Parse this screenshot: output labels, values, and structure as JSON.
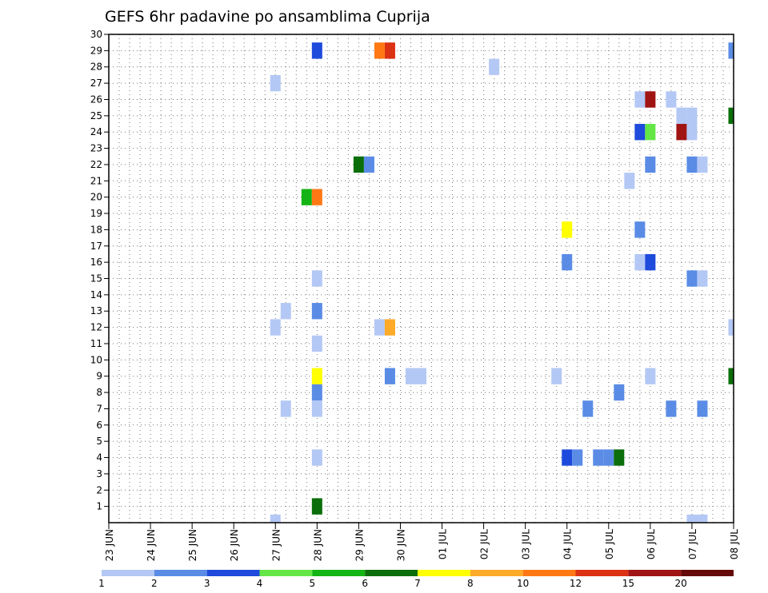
{
  "chart_data": {
    "type": "heatmap",
    "title": "GEFS 6hr padavine po ansamblima Cuprija",
    "xlabel": "",
    "ylabel": "",
    "x_tick_labels": [
      "23 JUN",
      "24 JUN",
      "25 JUN",
      "26 JUN",
      "27 JUN",
      "28 JUN",
      "29 JUN",
      "30 JUN",
      "01 JUL",
      "02 JUL",
      "03 JUL",
      "04 JUL",
      "05 JUL",
      "06 JUL",
      "07 JUL",
      "08 JUL"
    ],
    "xlim_days": [
      0,
      15
    ],
    "y_ticks": [
      1,
      2,
      3,
      4,
      5,
      6,
      7,
      8,
      9,
      10,
      11,
      12,
      13,
      14,
      15,
      16,
      17,
      18,
      19,
      20,
      21,
      22,
      23,
      24,
      25,
      26,
      27,
      28,
      29,
      30
    ],
    "ylim": [
      0,
      30
    ],
    "grid": true,
    "colorbar": {
      "labels": [
        "1",
        "2",
        "3",
        "4",
        "5",
        "6",
        "7",
        "8",
        "10",
        "12",
        "15",
        "20"
      ],
      "colors": [
        "#b4c8f5",
        "#5a8ce6",
        "#1e4bdc",
        "#64e646",
        "#14b414",
        "#0a6e0a",
        "#ffff00",
        "#ffaa28",
        "#ff7814",
        "#dc3214",
        "#a01414",
        "#640a0a"
      ]
    },
    "cells": [
      {
        "day": 5,
        "ens": 29,
        "v": 3
      },
      {
        "day": 6.75,
        "ens": 29,
        "v": 10
      },
      {
        "day": 6.5,
        "ens": 29,
        "v": 9
      },
      {
        "day": 15,
        "ens": 29,
        "v": 2
      },
      {
        "day": 9.25,
        "ens": 28,
        "v": 1
      },
      {
        "day": 4,
        "ens": 27,
        "v": 1
      },
      {
        "day": 12.75,
        "ens": 26,
        "v": 1
      },
      {
        "day": 13,
        "ens": 26,
        "v": 11
      },
      {
        "day": 13.5,
        "ens": 26,
        "v": 1
      },
      {
        "day": 13.75,
        "ens": 25,
        "v": 1
      },
      {
        "day": 14,
        "ens": 25,
        "v": 1
      },
      {
        "day": 15,
        "ens": 25,
        "v": 6
      },
      {
        "day": 12.75,
        "ens": 24,
        "v": 3
      },
      {
        "day": 13,
        "ens": 24,
        "v": 4
      },
      {
        "day": 13.75,
        "ens": 24,
        "v": 11
      },
      {
        "day": 14,
        "ens": 24,
        "v": 1
      },
      {
        "day": 6,
        "ens": 22,
        "v": 6
      },
      {
        "day": 6.25,
        "ens": 22,
        "v": 2
      },
      {
        "day": 13,
        "ens": 22,
        "v": 2
      },
      {
        "day": 14,
        "ens": 22,
        "v": 2
      },
      {
        "day": 14.25,
        "ens": 22,
        "v": 1
      },
      {
        "day": 12.5,
        "ens": 21,
        "v": 1
      },
      {
        "day": 4.75,
        "ens": 20,
        "v": 5
      },
      {
        "day": 5,
        "ens": 20,
        "v": 9
      },
      {
        "day": 11,
        "ens": 18,
        "v": 7
      },
      {
        "day": 12.75,
        "ens": 18,
        "v": 2
      },
      {
        "day": 11,
        "ens": 16,
        "v": 2
      },
      {
        "day": 12.75,
        "ens": 16,
        "v": 1
      },
      {
        "day": 13,
        "ens": 16,
        "v": 3
      },
      {
        "day": 5,
        "ens": 15,
        "v": 1
      },
      {
        "day": 14,
        "ens": 15,
        "v": 2
      },
      {
        "day": 14.25,
        "ens": 15,
        "v": 1
      },
      {
        "day": 4.25,
        "ens": 13,
        "v": 1
      },
      {
        "day": 5,
        "ens": 13,
        "v": 2
      },
      {
        "day": 4,
        "ens": 12,
        "v": 1
      },
      {
        "day": 6.5,
        "ens": 12,
        "v": 1
      },
      {
        "day": 6.75,
        "ens": 12,
        "v": 8
      },
      {
        "day": 15,
        "ens": 12,
        "v": 1
      },
      {
        "day": 5,
        "ens": 11,
        "v": 1
      },
      {
        "day": 13,
        "ens": 9,
        "v": 1
      },
      {
        "day": 5,
        "ens": 9,
        "v": 7
      },
      {
        "day": 6.75,
        "ens": 9,
        "v": 2
      },
      {
        "day": 7.25,
        "ens": 9,
        "v": 1
      },
      {
        "day": 7.5,
        "ens": 9,
        "v": 1
      },
      {
        "day": 10.75,
        "ens": 9,
        "v": 1
      },
      {
        "day": 15,
        "ens": 9,
        "v": 6
      },
      {
        "day": 5,
        "ens": 8,
        "v": 2
      },
      {
        "day": 12.25,
        "ens": 8,
        "v": 2
      },
      {
        "day": 4.25,
        "ens": 7,
        "v": 1
      },
      {
        "day": 5,
        "ens": 7,
        "v": 1
      },
      {
        "day": 11.5,
        "ens": 7,
        "v": 2
      },
      {
        "day": 13.5,
        "ens": 7,
        "v": 2
      },
      {
        "day": 14.25,
        "ens": 7,
        "v": 2
      },
      {
        "day": 5,
        "ens": 4,
        "v": 1
      },
      {
        "day": 11,
        "ens": 4,
        "v": 3
      },
      {
        "day": 11.25,
        "ens": 4,
        "v": 2
      },
      {
        "day": 11.75,
        "ens": 4,
        "v": 2
      },
      {
        "day": 12,
        "ens": 4,
        "v": 2
      },
      {
        "day": 12.25,
        "ens": 4,
        "v": 6
      },
      {
        "day": 5,
        "ens": 1,
        "v": 6
      },
      {
        "day": 4,
        "ens": 0,
        "v": 1
      },
      {
        "day": 14,
        "ens": 0,
        "v": 1
      },
      {
        "day": 14.25,
        "ens": 0,
        "v": 1
      }
    ]
  }
}
